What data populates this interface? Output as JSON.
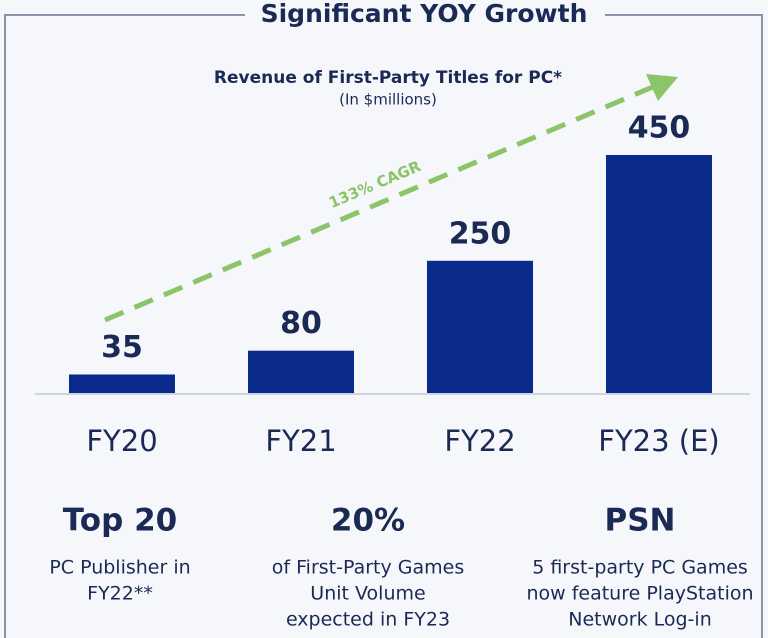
{
  "heading": "Significant YOY Growth",
  "chart_data": {
    "type": "bar",
    "title": "Revenue of First-Party Titles for PC*",
    "subtitle": "(In $millions)",
    "annotation": "133% CAGR",
    "categories": [
      "FY20",
      "FY21",
      "FY22",
      "FY23 (E)"
    ],
    "values": [
      35,
      80,
      250,
      450
    ],
    "color": "#0b2b8c",
    "ylim": [
      0,
      450
    ]
  },
  "highlights": [
    {
      "title": "Top 20",
      "lines": [
        "PC Publisher in",
        "FY22**"
      ]
    },
    {
      "title": "20%",
      "lines": [
        "of First-Party Games",
        "Unit Volume",
        "expected in FY23"
      ]
    },
    {
      "title": "PSN",
      "lines": [
        "5 first-party PC Games",
        "now feature PlayStation",
        "Network Log-in"
      ]
    }
  ]
}
